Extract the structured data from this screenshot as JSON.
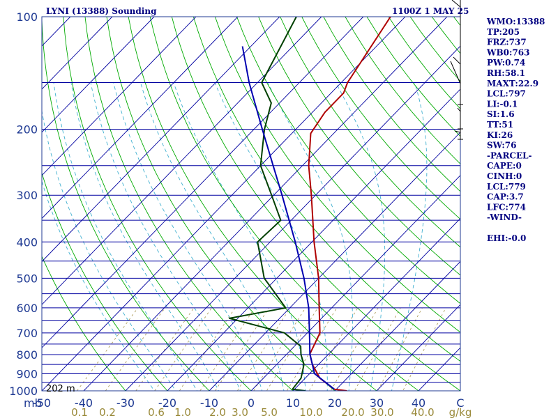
{
  "header": {
    "station": "LYNI (13388) Sounding",
    "time": "1100Z  1 MAY 25"
  },
  "indices": [
    "WMO:13388",
    "TP:205",
    "FRZ:737",
    "WB0:763",
    "PW:0.74",
    "RH:58.1",
    "MAXT:22.9",
    "LCL:797",
    "LI:-0.1",
    "SI:1.6",
    "TT:51",
    "KI:26",
    "SW:76",
    "-PARCEL-",
    "CAPE:0",
    "CINH:0",
    "LCL:779",
    "CAP:3.7",
    "LFC:774",
    "-WIND-",
    "",
    "EHI:-0.0"
  ],
  "surface_height_label": "202 m",
  "pressure_unit_label": "mb",
  "temp_unit_label": "C",
  "mixing_unit_label": "g/kg",
  "colors": {
    "isobar": "#0000a0",
    "isotherm": "#0000a0",
    "dry_adiabat": "#00aa00",
    "moist_adiabat": "#40b0d0",
    "mixing_ratio": "#b0a060",
    "temperature": "#b00000",
    "dewpoint": "#004000",
    "parcel": "#0000b0"
  },
  "chart_data": {
    "type": "line",
    "title": "LYNI (13388) Sounding",
    "xlabel": "C",
    "ylabel": "mb",
    "log_pressure_axis": true,
    "ylim": [
      1000,
      100
    ],
    "xlim": [
      -50,
      50
    ],
    "pressure_tick_labels": [
      100,
      200,
      300,
      400,
      500,
      600,
      700,
      800,
      900,
      1000
    ],
    "isobars": [
      100,
      150,
      200,
      250,
      300,
      350,
      400,
      450,
      500,
      550,
      600,
      650,
      700,
      750,
      800,
      850,
      900,
      950,
      1000
    ],
    "temperature_tick_labels": [
      "-50",
      "-40",
      "-30",
      "-20",
      "-10",
      "0",
      "10",
      "20",
      "30",
      "40",
      "C"
    ],
    "mixing_ratio_labels": [
      "0.1",
      "0.2",
      "0.6",
      "1.0",
      "2.0",
      "3.0",
      "5.0",
      "10.0",
      "20.0",
      "30.0",
      "40.0",
      "g/kg"
    ],
    "series": [
      {
        "name": "Temperature",
        "points": [
          {
            "p": 1000,
            "t": 22.9
          },
          {
            "p": 990,
            "t": 19.5
          },
          {
            "p": 925,
            "t": 13.5
          },
          {
            "p": 850,
            "t": 8.5
          },
          {
            "p": 797,
            "t": 5.5
          },
          {
            "p": 700,
            "t": 3.0
          },
          {
            "p": 600,
            "t": -3.0
          },
          {
            "p": 500,
            "t": -10.0
          },
          {
            "p": 400,
            "t": -19.5
          },
          {
            "p": 300,
            "t": -31.0
          },
          {
            "p": 250,
            "t": -38.5
          },
          {
            "p": 205,
            "t": -45.5
          },
          {
            "p": 180,
            "t": -47.0
          },
          {
            "p": 160,
            "t": -47.0
          },
          {
            "p": 150,
            "t": -48.5
          },
          {
            "p": 100,
            "t": -53.5
          }
        ]
      },
      {
        "name": "Dewpoint",
        "points": [
          {
            "p": 1000,
            "t": 13.0
          },
          {
            "p": 990,
            "t": 9.5
          },
          {
            "p": 925,
            "t": 9.0
          },
          {
            "p": 850,
            "t": 6.5
          },
          {
            "p": 800,
            "t": 3.5
          },
          {
            "p": 760,
            "t": 1.5
          },
          {
            "p": 700,
            "t": -5.5
          },
          {
            "p": 640,
            "t": -22.0
          },
          {
            "p": 600,
            "t": -11.0
          },
          {
            "p": 500,
            "t": -23.0
          },
          {
            "p": 400,
            "t": -33.0
          },
          {
            "p": 350,
            "t": -32.5
          },
          {
            "p": 300,
            "t": -40.5
          },
          {
            "p": 250,
            "t": -50.0
          },
          {
            "p": 200,
            "t": -57.5
          },
          {
            "p": 170,
            "t": -62.0
          },
          {
            "p": 150,
            "t": -69.0
          },
          {
            "p": 100,
            "t": -76.0
          }
        ]
      },
      {
        "name": "Parcel",
        "points": [
          {
            "p": 990,
            "t": 19.5
          },
          {
            "p": 900,
            "t": 11.2
          },
          {
            "p": 797,
            "t": 5.5
          },
          {
            "p": 700,
            "t": 0.5
          },
          {
            "p": 600,
            "t": -5.5
          },
          {
            "p": 500,
            "t": -13.5
          },
          {
            "p": 400,
            "t": -24.0
          },
          {
            "p": 300,
            "t": -38.0
          },
          {
            "p": 250,
            "t": -47.0
          },
          {
            "p": 200,
            "t": -58.0
          },
          {
            "p": 150,
            "t": -72.0
          },
          {
            "p": 120,
            "t": -82.0
          }
        ]
      }
    ]
  }
}
